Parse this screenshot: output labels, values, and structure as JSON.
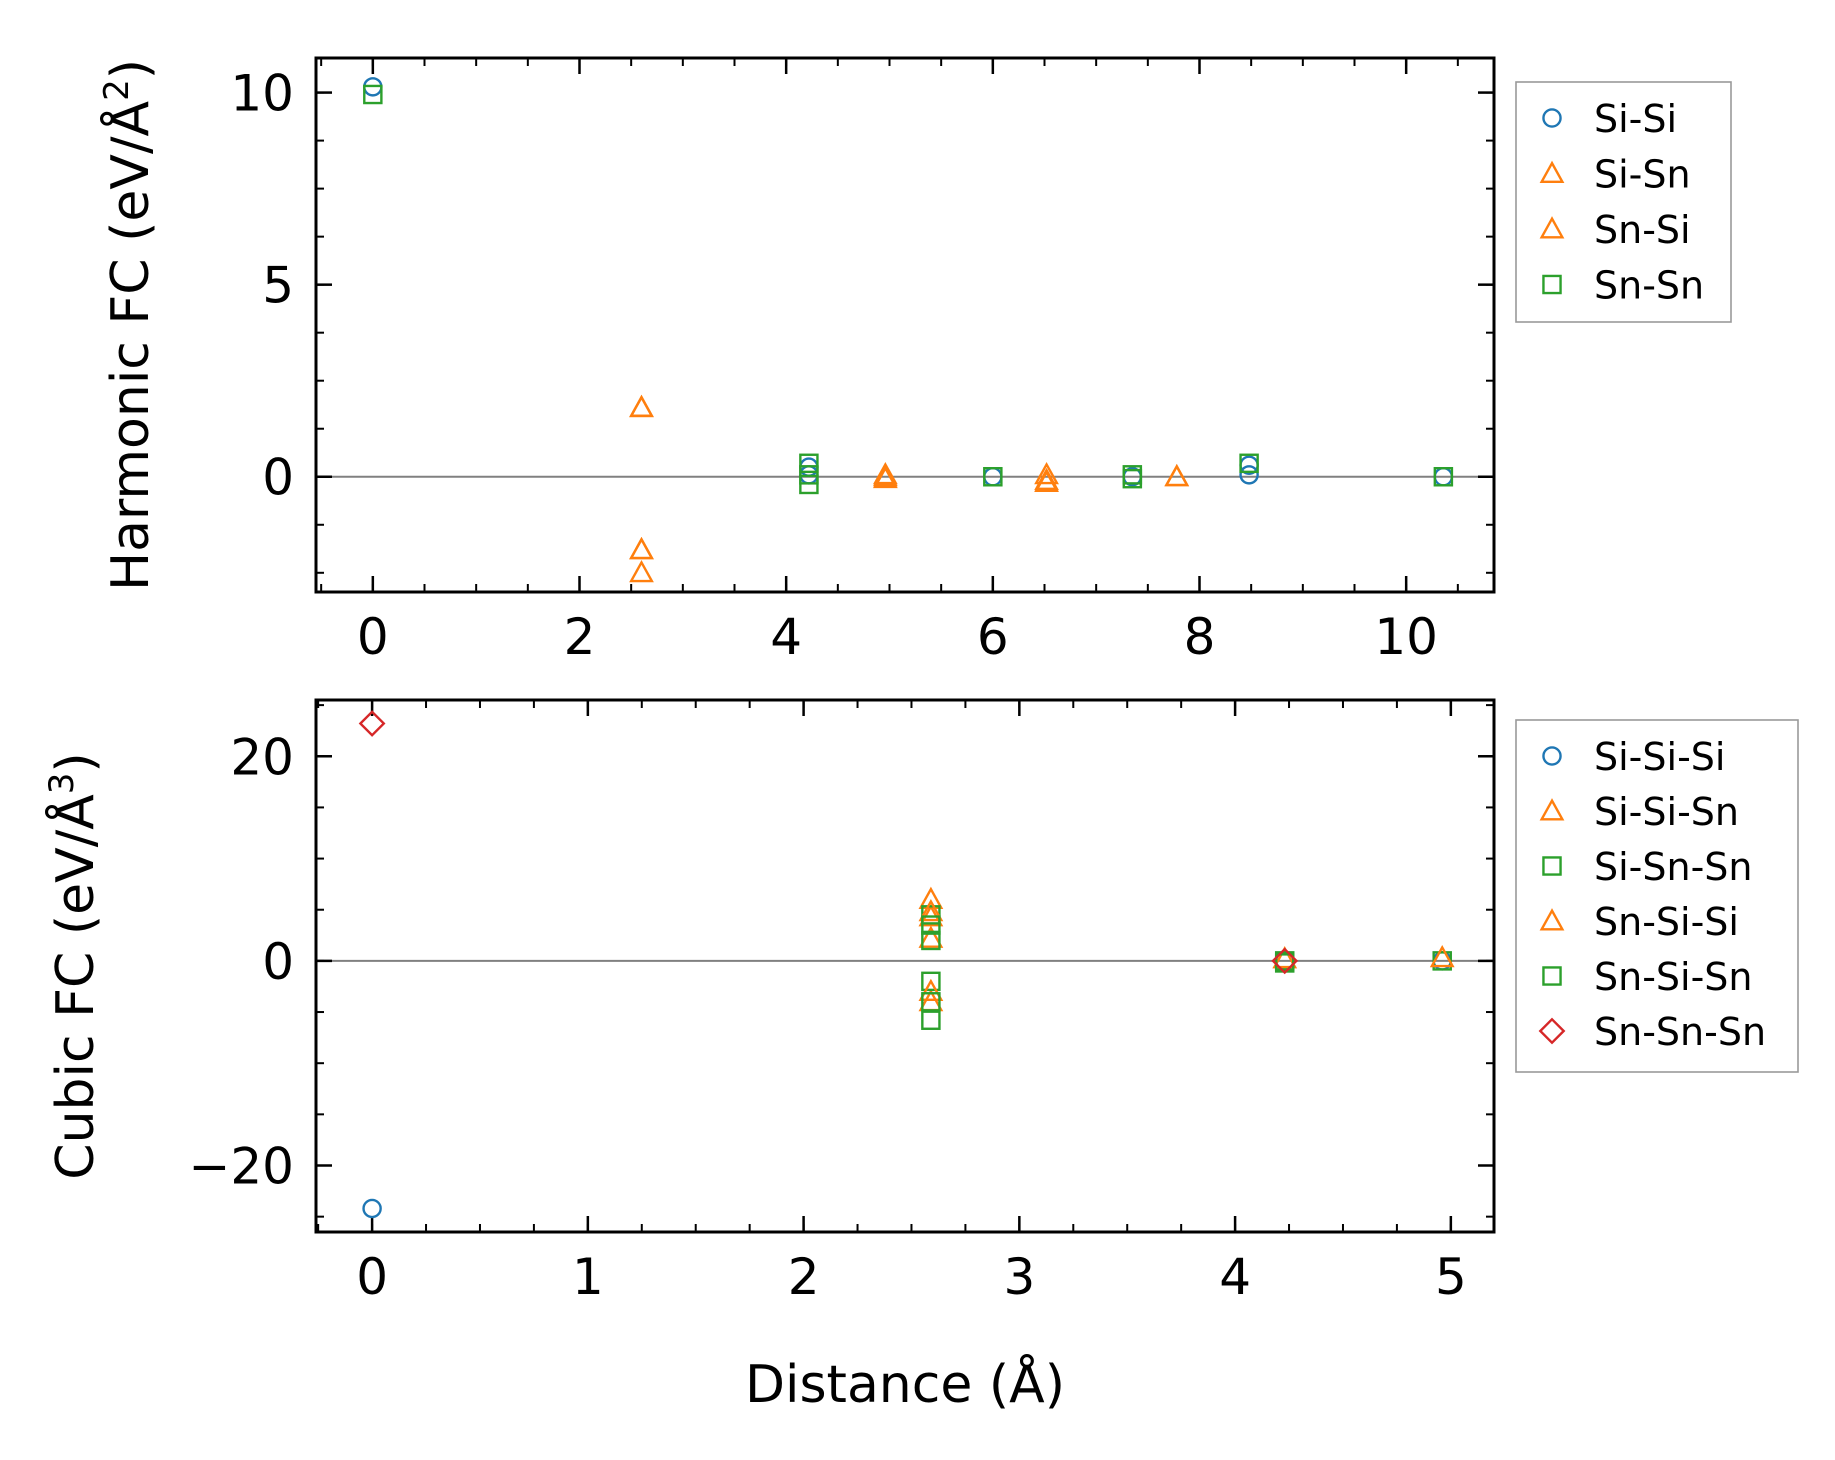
{
  "chart_data": [
    {
      "type": "scatter",
      "xlabel": "",
      "ylabel": "Harmonic FC (eV/Å",
      "ylabel_sup": "2",
      "ylabel_tail": ")",
      "xlim": [
        -0.55,
        10.85
      ],
      "ylim": [
        -3.0,
        10.9
      ],
      "xticks": [
        0,
        2,
        4,
        6,
        8,
        10
      ],
      "yticks": [
        0,
        5,
        10
      ],
      "zero_line": true,
      "legend": "outside-right",
      "series": [
        {
          "name": "Si-Si",
          "marker": "circle",
          "color": "#1f77b4",
          "x": [
            0,
            4.22,
            4.22,
            6.0,
            7.35,
            8.48,
            8.48,
            10.36
          ],
          "y": [
            10.15,
            0.25,
            0.05,
            0.0,
            0.0,
            0.3,
            0.05,
            0.0
          ]
        },
        {
          "name": "Si-Sn",
          "marker": "triangle",
          "color": "#ff7f0e",
          "x": [
            2.6,
            2.6,
            2.6,
            4.96,
            4.96,
            6.52,
            6.52,
            7.78
          ],
          "y": [
            1.8,
            -1.9,
            -2.5,
            0.05,
            -0.05,
            0.05,
            -0.15,
            0.0
          ]
        },
        {
          "name": "Sn-Si",
          "marker": "triangle",
          "color": "#ff7f0e",
          "x": [
            2.6,
            2.6,
            4.96,
            6.52,
            7.78
          ],
          "y": [
            1.8,
            -1.9,
            0.0,
            -0.1,
            0.0
          ]
        },
        {
          "name": "Sn-Sn",
          "marker": "square",
          "color": "#2ca02c",
          "x": [
            0,
            4.22,
            4.22,
            4.22,
            6.0,
            7.35,
            7.35,
            8.48,
            10.36
          ],
          "y": [
            9.95,
            0.35,
            0.05,
            -0.2,
            0.0,
            0.05,
            -0.05,
            0.35,
            0.0
          ]
        }
      ]
    },
    {
      "type": "scatter",
      "xlabel": "Distance (Å)",
      "ylabel": "Cubic FC (eV/Å",
      "ylabel_sup": "3",
      "ylabel_tail": ")",
      "xlim": [
        -0.26,
        5.2
      ],
      "ylim": [
        -26.5,
        25.5
      ],
      "xticks": [
        0,
        1,
        2,
        3,
        4,
        5
      ],
      "yticks": [
        -20,
        0,
        20
      ],
      "zero_line": true,
      "legend": "outside-right",
      "series": [
        {
          "name": "Si-Si-Si",
          "marker": "circle",
          "color": "#1f77b4",
          "x": [
            0,
            4.23,
            4.96
          ],
          "y": [
            -24.2,
            0.0,
            0.0
          ]
        },
        {
          "name": "Si-Si-Sn",
          "marker": "triangle",
          "color": "#ff7f0e",
          "x": [
            2.59,
            2.59,
            2.59,
            2.59,
            4.23
          ],
          "y": [
            6.0,
            4.3,
            2.2,
            -4.0,
            0.2
          ]
        },
        {
          "name": "Si-Sn-Sn",
          "marker": "square",
          "color": "#2ca02c",
          "x": [
            2.59,
            2.59,
            2.59,
            2.59,
            4.23,
            4.96
          ],
          "y": [
            4.5,
            2.0,
            -2.0,
            -5.8,
            0.0,
            0.0
          ]
        },
        {
          "name": "Sn-Si-Si",
          "marker": "triangle",
          "color": "#ff7f0e",
          "x": [
            2.59,
            2.59,
            4.96
          ],
          "y": [
            4.8,
            -3.0,
            0.3
          ]
        },
        {
          "name": "Sn-Si-Sn",
          "marker": "square",
          "color": "#2ca02c",
          "x": [
            2.59,
            2.59,
            4.23
          ],
          "y": [
            3.5,
            -4.0,
            -0.2
          ]
        },
        {
          "name": "Sn-Sn-Sn",
          "marker": "diamond",
          "color": "#d62728",
          "x": [
            0,
            4.23
          ],
          "y": [
            23.2,
            0.0
          ]
        }
      ]
    }
  ]
}
